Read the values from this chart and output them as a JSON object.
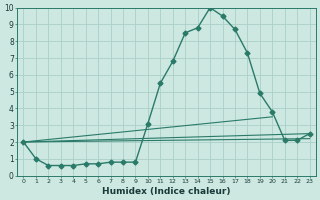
{
  "xlabel": "Humidex (Indice chaleur)",
  "background_color": "#cce8e0",
  "grid_color": "#aacfc8",
  "line_color": "#2a7a6a",
  "xlim": [
    -0.5,
    23.5
  ],
  "ylim": [
    0,
    10
  ],
  "xticks": [
    0,
    1,
    2,
    3,
    4,
    5,
    6,
    7,
    8,
    9,
    10,
    11,
    12,
    13,
    14,
    15,
    16,
    17,
    18,
    19,
    20,
    21,
    22,
    23
  ],
  "yticks": [
    0,
    1,
    2,
    3,
    4,
    5,
    6,
    7,
    8,
    9,
    10
  ],
  "series": [
    {
      "x": [
        0,
        1,
        2,
        3,
        4,
        5,
        6,
        7,
        8,
        9,
        10,
        11,
        12,
        13,
        14,
        15,
        16,
        17,
        18,
        19,
        20,
        21,
        22,
        23
      ],
      "y": [
        2.0,
        1.0,
        0.6,
        0.6,
        0.6,
        0.7,
        0.7,
        0.8,
        0.8,
        0.8,
        3.1,
        5.5,
        6.8,
        8.5,
        8.8,
        10.0,
        9.5,
        8.7,
        7.3,
        4.9,
        3.8,
        2.1,
        2.1,
        2.5
      ],
      "marker": "D",
      "markersize": 2.5,
      "linewidth": 1.0
    },
    {
      "x": [
        0,
        23
      ],
      "y": [
        2.0,
        2.5
      ],
      "marker": null,
      "linewidth": 0.8
    },
    {
      "x": [
        0,
        23
      ],
      "y": [
        2.0,
        2.2
      ],
      "marker": null,
      "linewidth": 0.8
    },
    {
      "x": [
        0,
        20
      ],
      "y": [
        2.0,
        3.5
      ],
      "marker": null,
      "linewidth": 0.8
    }
  ]
}
